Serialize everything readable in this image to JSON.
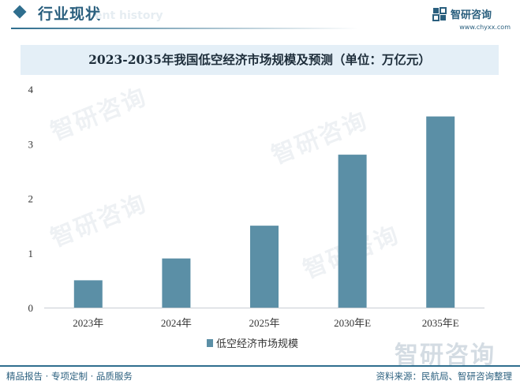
{
  "header": {
    "section_title": "行业现状",
    "section_subtitle": "ent history",
    "logo_name": "智研咨询",
    "logo_url": "www.chyxx.com",
    "accent_color": "#2f6e8e"
  },
  "watermark_text": "智研咨询",
  "chart_data": {
    "type": "bar",
    "title": "2023-2035年我国低空经济市场规模及预测（单位：万亿元）",
    "categories": [
      "2023年",
      "2024年",
      "2025年",
      "2030年E",
      "2035年E"
    ],
    "series": [
      {
        "name": "低空经济市场规模",
        "values": [
          0.5,
          0.9,
          1.5,
          2.8,
          3.5
        ],
        "color": "#5b8fa6"
      }
    ],
    "ylim": [
      0,
      4
    ],
    "yticks": [
      0,
      1,
      2,
      3,
      4
    ],
    "xlabel": "",
    "ylabel": "",
    "grid": false,
    "legend_position": "bottom"
  },
  "footer": {
    "left": "精品报告 · 专项定制 · 品质服务",
    "right": "资料来源：民航局、智研咨询整理"
  }
}
